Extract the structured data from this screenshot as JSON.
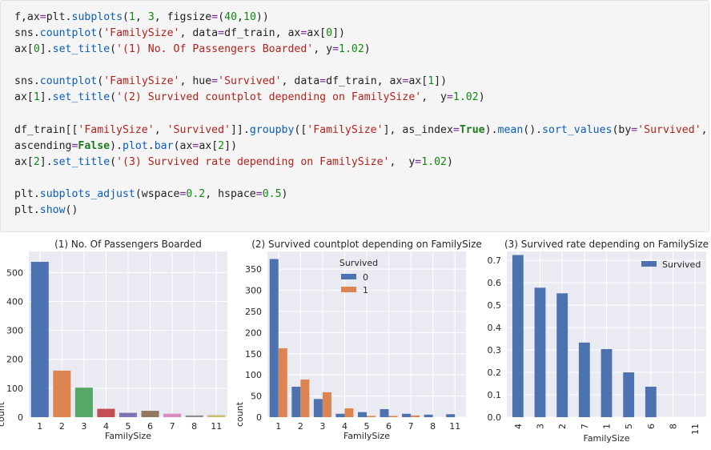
{
  "code_lines": [
    [
      {
        "t": "f,ax",
        "c": ""
      },
      {
        "t": "=",
        "c": "op"
      },
      {
        "t": "plt",
        "c": ""
      },
      {
        "t": ".",
        "c": ""
      },
      {
        "t": "subplots",
        "c": "fn"
      },
      {
        "t": "(",
        "c": ""
      },
      {
        "t": "1",
        "c": "num"
      },
      {
        "t": ", ",
        "c": ""
      },
      {
        "t": "3",
        "c": "num"
      },
      {
        "t": ", figsize",
        "c": ""
      },
      {
        "t": "=",
        "c": "op"
      },
      {
        "t": "(",
        "c": ""
      },
      {
        "t": "40",
        "c": "num"
      },
      {
        "t": ",",
        "c": ""
      },
      {
        "t": "10",
        "c": "num"
      },
      {
        "t": "))",
        "c": ""
      }
    ],
    [
      {
        "t": "sns.",
        "c": ""
      },
      {
        "t": "countplot",
        "c": "fn"
      },
      {
        "t": "(",
        "c": ""
      },
      {
        "t": "'FamilySize'",
        "c": "str"
      },
      {
        "t": ", data",
        "c": ""
      },
      {
        "t": "=",
        "c": "op"
      },
      {
        "t": "df_train, ax",
        "c": ""
      },
      {
        "t": "=",
        "c": "op"
      },
      {
        "t": "ax[",
        "c": ""
      },
      {
        "t": "0",
        "c": "num"
      },
      {
        "t": "])",
        "c": ""
      }
    ],
    [
      {
        "t": "ax[",
        "c": ""
      },
      {
        "t": "0",
        "c": "num"
      },
      {
        "t": "].",
        "c": ""
      },
      {
        "t": "set_title",
        "c": "fn"
      },
      {
        "t": "(",
        "c": ""
      },
      {
        "t": "'(1) No. Of Passengers Boarded'",
        "c": "str"
      },
      {
        "t": ", y",
        "c": ""
      },
      {
        "t": "=",
        "c": "op"
      },
      {
        "t": "1.02",
        "c": "num"
      },
      {
        "t": ")",
        "c": ""
      }
    ],
    [],
    [
      {
        "t": "sns.",
        "c": ""
      },
      {
        "t": "countplot",
        "c": "fn"
      },
      {
        "t": "(",
        "c": ""
      },
      {
        "t": "'FamilySize'",
        "c": "str"
      },
      {
        "t": ", hue",
        "c": ""
      },
      {
        "t": "=",
        "c": "op"
      },
      {
        "t": "'Survived'",
        "c": "str"
      },
      {
        "t": ", data",
        "c": ""
      },
      {
        "t": "=",
        "c": "op"
      },
      {
        "t": "df_train, ax",
        "c": ""
      },
      {
        "t": "=",
        "c": "op"
      },
      {
        "t": "ax[",
        "c": ""
      },
      {
        "t": "1",
        "c": "num"
      },
      {
        "t": "])",
        "c": ""
      }
    ],
    [
      {
        "t": "ax[",
        "c": ""
      },
      {
        "t": "1",
        "c": "num"
      },
      {
        "t": "].",
        "c": ""
      },
      {
        "t": "set_title",
        "c": "fn"
      },
      {
        "t": "(",
        "c": ""
      },
      {
        "t": "'(2) Survived countplot depending on FamilySize'",
        "c": "str"
      },
      {
        "t": ",  y",
        "c": ""
      },
      {
        "t": "=",
        "c": "op"
      },
      {
        "t": "1.02",
        "c": "num"
      },
      {
        "t": ")",
        "c": ""
      }
    ],
    [],
    [
      {
        "t": "df_train[[",
        "c": ""
      },
      {
        "t": "'FamilySize'",
        "c": "str"
      },
      {
        "t": ", ",
        "c": ""
      },
      {
        "t": "'Survived'",
        "c": "str"
      },
      {
        "t": "]].",
        "c": ""
      },
      {
        "t": "groupby",
        "c": "fn"
      },
      {
        "t": "([",
        "c": ""
      },
      {
        "t": "'FamilySize'",
        "c": "str"
      },
      {
        "t": "], as_index",
        "c": ""
      },
      {
        "t": "=",
        "c": "op"
      },
      {
        "t": "True",
        "c": "kw"
      },
      {
        "t": ").",
        "c": ""
      },
      {
        "t": "mean",
        "c": "fn"
      },
      {
        "t": "().",
        "c": ""
      },
      {
        "t": "sort_values",
        "c": "fn"
      },
      {
        "t": "(by",
        "c": ""
      },
      {
        "t": "=",
        "c": "op"
      },
      {
        "t": "'Survived'",
        "c": "str"
      },
      {
        "t": ",",
        "c": ""
      }
    ],
    [
      {
        "t": "ascending",
        "c": ""
      },
      {
        "t": "=",
        "c": "op"
      },
      {
        "t": "False",
        "c": "kw"
      },
      {
        "t": ").",
        "c": ""
      },
      {
        "t": "plot",
        "c": "fn"
      },
      {
        "t": ".",
        "c": ""
      },
      {
        "t": "bar",
        "c": "fn"
      },
      {
        "t": "(ax",
        "c": ""
      },
      {
        "t": "=",
        "c": "op"
      },
      {
        "t": "ax[",
        "c": ""
      },
      {
        "t": "2",
        "c": "num"
      },
      {
        "t": "])",
        "c": ""
      }
    ],
    [
      {
        "t": "ax[",
        "c": ""
      },
      {
        "t": "2",
        "c": "num"
      },
      {
        "t": "].",
        "c": ""
      },
      {
        "t": "set_title",
        "c": "fn"
      },
      {
        "t": "(",
        "c": ""
      },
      {
        "t": "'(3) Survived rate depending on FamilySize'",
        "c": "str"
      },
      {
        "t": ",  y",
        "c": ""
      },
      {
        "t": "=",
        "c": "op"
      },
      {
        "t": "1.02",
        "c": "num"
      },
      {
        "t": ")",
        "c": ""
      }
    ],
    [],
    [
      {
        "t": "plt.",
        "c": ""
      },
      {
        "t": "subplots_adjust",
        "c": "fn"
      },
      {
        "t": "(wspace",
        "c": ""
      },
      {
        "t": "=",
        "c": "op"
      },
      {
        "t": "0.2",
        "c": "num"
      },
      {
        "t": ", hspace",
        "c": ""
      },
      {
        "t": "=",
        "c": "op"
      },
      {
        "t": "0.5",
        "c": "num"
      },
      {
        "t": ")",
        "c": ""
      }
    ],
    [
      {
        "t": "plt.",
        "c": ""
      },
      {
        "t": "show",
        "c": "fn"
      },
      {
        "t": "()",
        "c": ""
      }
    ]
  ],
  "chart_data": [
    {
      "type": "bar",
      "title": "(1) No. Of Passengers Boarded",
      "xlabel": "FamilySize",
      "ylabel": "count",
      "categories": [
        "1",
        "2",
        "3",
        "4",
        "5",
        "6",
        "7",
        "8",
        "11"
      ],
      "values": [
        537,
        161,
        102,
        29,
        15,
        22,
        12,
        6,
        7
      ],
      "colors": [
        "#4c72b0",
        "#dd8452",
        "#55a868",
        "#c44e52",
        "#8172b3",
        "#937860",
        "#da8bc3",
        "#8c8c8c",
        "#ccb974"
      ],
      "ylim": [
        0,
        573
      ],
      "yticks": [
        0,
        100,
        200,
        300,
        400,
        500
      ],
      "grid": true
    },
    {
      "type": "bar",
      "title": "(2) Survived countplot depending on FamilySize",
      "xlabel": "FamilySize",
      "ylabel": "count",
      "categories": [
        "1",
        "2",
        "3",
        "4",
        "5",
        "6",
        "7",
        "8",
        "11"
      ],
      "series": [
        {
          "name": "0",
          "color": "#4c72b0",
          "values": [
            374,
            72,
            43,
            8,
            12,
            19,
            8,
            6,
            7
          ]
        },
        {
          "name": "1",
          "color": "#dd8452",
          "values": [
            163,
            89,
            59,
            21,
            3,
            3,
            4,
            0,
            0
          ]
        }
      ],
      "legend_title": "Survived",
      "legend_position": "top-center",
      "ylim": [
        0,
        392
      ],
      "yticks": [
        0,
        50,
        100,
        150,
        200,
        250,
        300,
        350
      ],
      "grid": true
    },
    {
      "type": "bar",
      "title": "(3) Survived rate depending on FamilySize",
      "xlabel": "FamilySize",
      "ylabel": "",
      "categories": [
        "4",
        "3",
        "2",
        "7",
        "1",
        "5",
        "6",
        "8",
        "11"
      ],
      "series": [
        {
          "name": "Survived",
          "color": "#4c72b0",
          "values": [
            0.724,
            0.578,
            0.553,
            0.333,
            0.304,
            0.2,
            0.136,
            0.0,
            0.0
          ]
        }
      ],
      "legend_position": "top-right",
      "ylim": [
        0,
        0.74
      ],
      "yticks": [
        0.0,
        0.1,
        0.2,
        0.3,
        0.4,
        0.5,
        0.6,
        0.7
      ],
      "ytick_labels": [
        "0.0",
        "0.1",
        "0.2",
        "0.3",
        "0.4",
        "0.5",
        "0.6",
        "0.7"
      ],
      "xtick_rotation": "vertical",
      "grid": true
    }
  ]
}
